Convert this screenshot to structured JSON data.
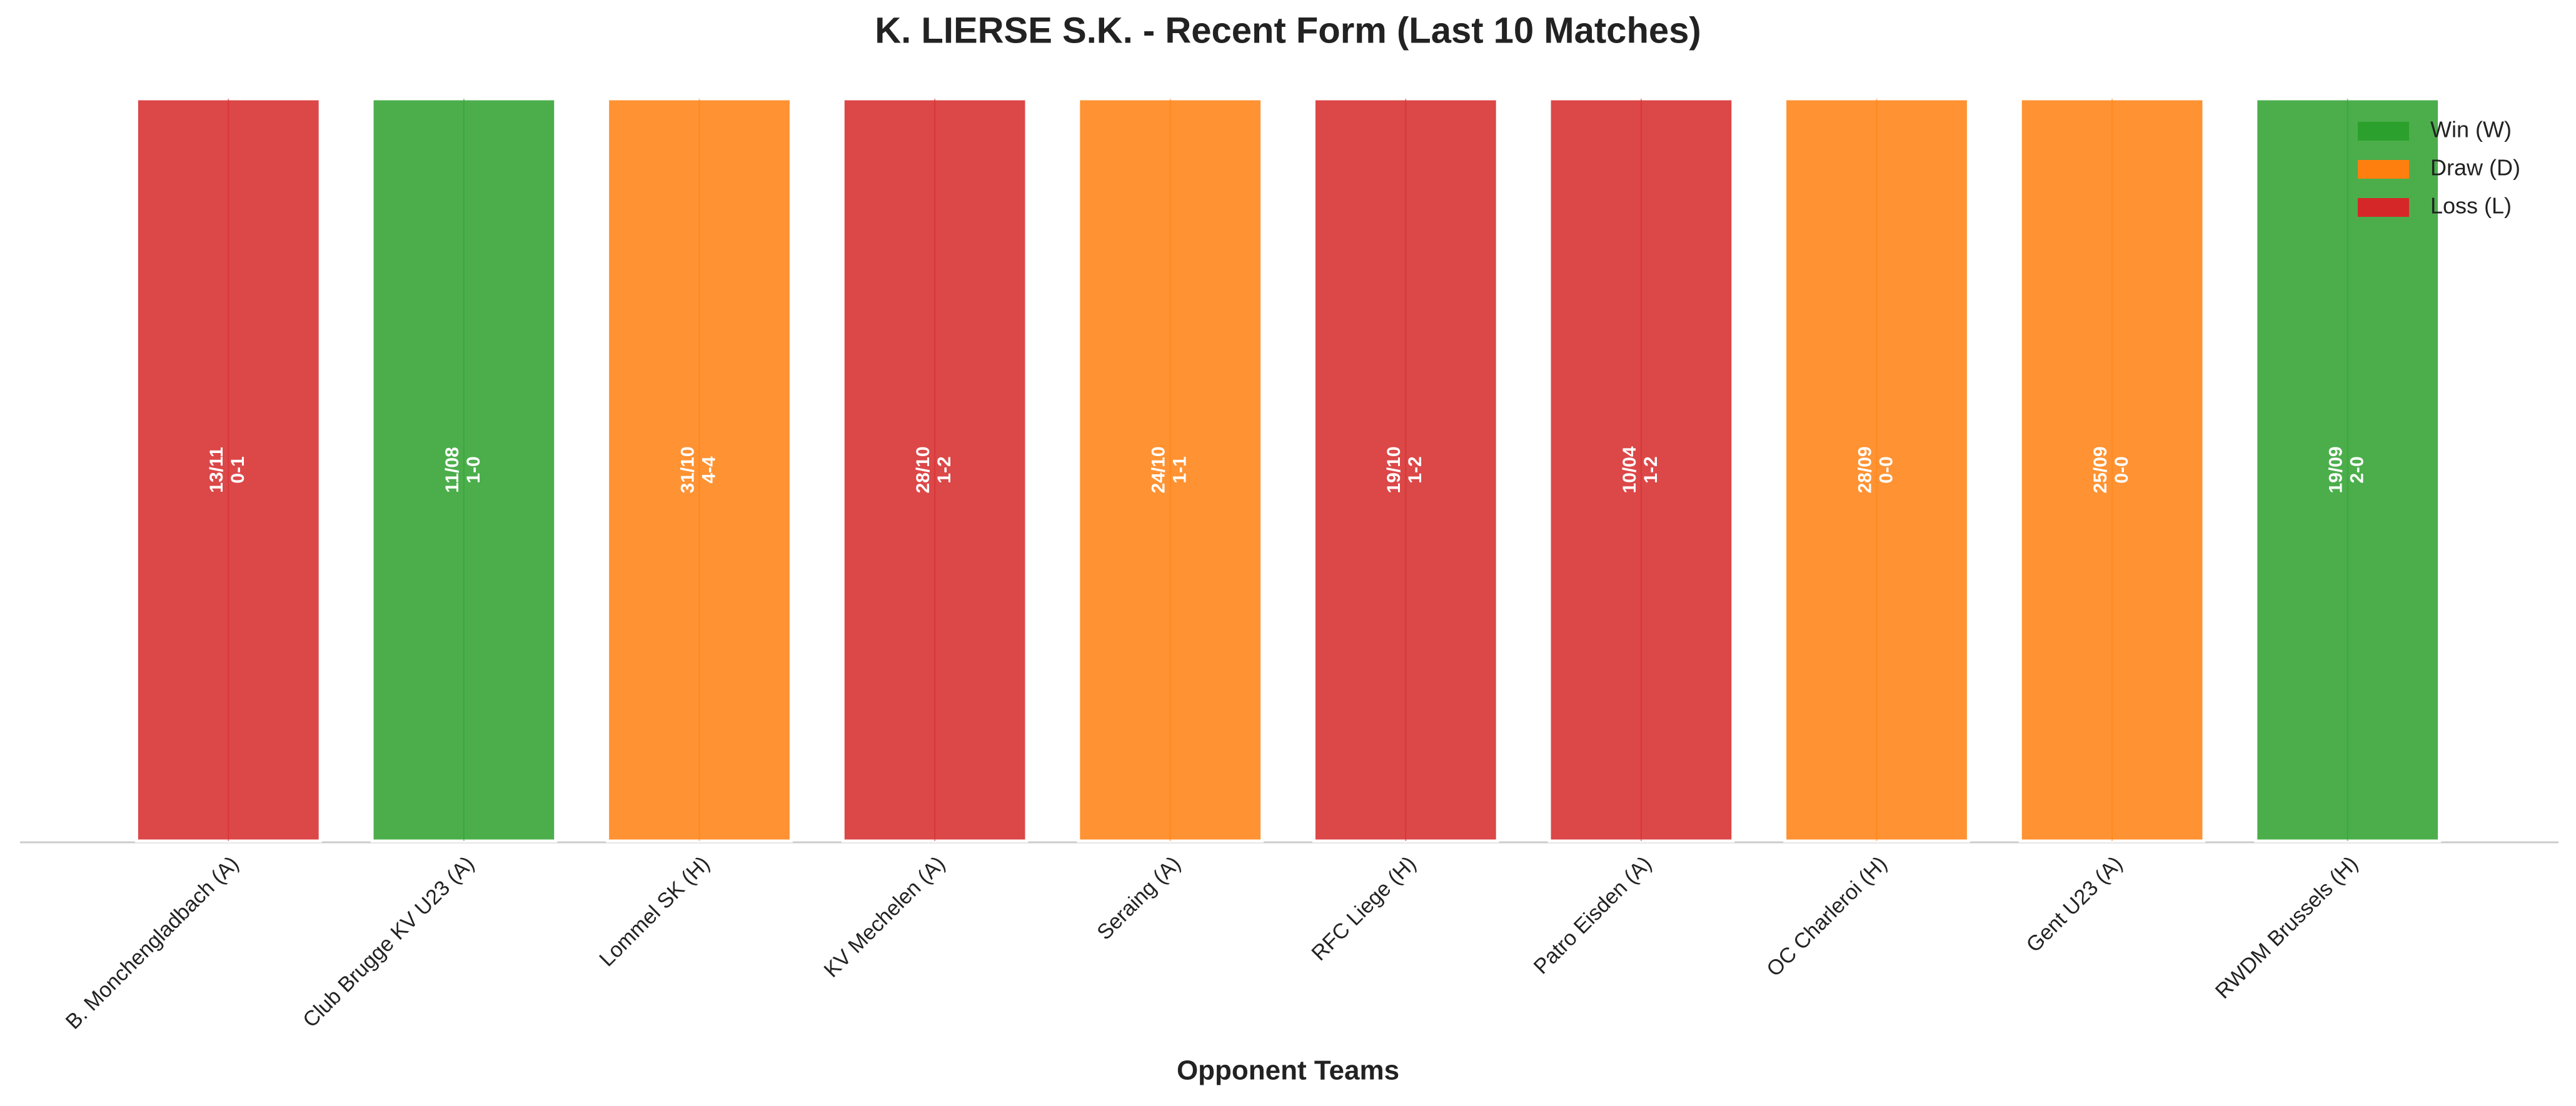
{
  "chart_data": {
    "type": "bar",
    "title": "K. LIERSE S.K. - Recent Form (Last 10 Matches)",
    "x_label": "Opponent Teams",
    "categories": [
      "B. Monchengladbach (A)",
      "Club Brugge KV U23 (A)",
      "Lommel SK (H)",
      "KV Mechelen (A)",
      "Seraing (A)",
      "RFC Liege (H)",
      "Patro Eisden (A)",
      "OC Charleroi (H)",
      "Gent U23 (A)",
      "RWDM Brussels (H)"
    ],
    "values": [
      1,
      1,
      1,
      1,
      1,
      1,
      1,
      1,
      1,
      1
    ],
    "ylim": [
      0,
      1
    ],
    "dates": [
      "13/11",
      "11/08",
      "31/10",
      "28/10",
      "24/10",
      "19/10",
      "10/04",
      "28/09",
      "25/09",
      "19/09"
    ],
    "scores": [
      "0-1",
      "1-0",
      "4-4",
      "1-2",
      "1-1",
      "1-2",
      "1-2",
      "0-0",
      "0-0",
      "2-0"
    ],
    "colors": [
      "#d62728",
      "#2ca02c",
      "#ff7f0e",
      "#d62728",
      "#ff7f0e",
      "#d62728",
      "#d62728",
      "#ff7f0e",
      "#ff7f0e",
      "#2ca02c"
    ],
    "legend": {
      "position": "upper right",
      "items": [
        {
          "name": "Win (W)",
          "color": "#2ca02c"
        },
        {
          "name": "Draw (D)",
          "color": "#ff7f0e"
        },
        {
          "name": "Loss (L)",
          "color": "#d62728"
        }
      ]
    }
  }
}
